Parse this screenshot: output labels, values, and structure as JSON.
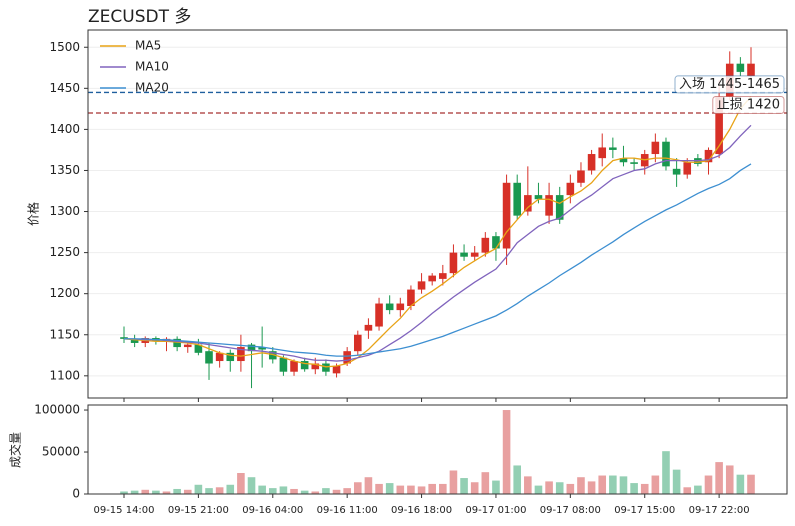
{
  "chart_data": [
    {
      "type": "candlestick",
      "title": "ZECUSDT 多",
      "ylabel": "价格",
      "categories": [
        "09-15 14:00",
        null,
        null,
        null,
        null,
        null,
        null,
        "09-15 21:00",
        null,
        null,
        null,
        null,
        null,
        null,
        "09-16 04:00",
        null,
        null,
        null,
        null,
        null,
        null,
        "09-16 11:00",
        null,
        null,
        null,
        null,
        null,
        null,
        "09-16 18:00",
        null,
        null,
        null,
        null,
        null,
        null,
        "09-17 01:00",
        null,
        null,
        null,
        null,
        null,
        null,
        "09-17 08:00",
        null,
        null,
        null,
        null,
        null,
        null,
        "09-17 15:00",
        null,
        null,
        null,
        null,
        null,
        null,
        "09-17 22:00",
        null,
        null,
        null
      ],
      "open": [
        1147,
        1145,
        1140,
        1146,
        1142,
        1145,
        1135,
        1138,
        1130,
        1118,
        1128,
        1118,
        1138,
        1135,
        1130,
        1122,
        1105,
        1118,
        1108,
        1115,
        1103,
        1115,
        1130,
        1155,
        1160,
        1188,
        1180,
        1185,
        1205,
        1215,
        1218,
        1225,
        1250,
        1245,
        1250,
        1270,
        1255,
        1335,
        1300,
        1320,
        1295,
        1320,
        1320,
        1335,
        1350,
        1365,
        1378,
        1365,
        1360,
        1355,
        1370,
        1385,
        1352,
        1345,
        1365,
        1360,
        1370,
        1440,
        1480,
        1465
      ],
      "high": [
        1160,
        1150,
        1148,
        1148,
        1147,
        1148,
        1142,
        1145,
        1140,
        1130,
        1132,
        1150,
        1140,
        1160,
        1135,
        1125,
        1120,
        1122,
        1122,
        1120,
        1115,
        1135,
        1155,
        1170,
        1195,
        1198,
        1195,
        1210,
        1225,
        1225,
        1235,
        1260,
        1260,
        1258,
        1275,
        1275,
        1345,
        1345,
        1355,
        1335,
        1335,
        1330,
        1345,
        1360,
        1375,
        1395,
        1390,
        1380,
        1365,
        1375,
        1395,
        1390,
        1365,
        1365,
        1370,
        1378,
        1460,
        1495,
        1488,
        1500
      ],
      "low": [
        1140,
        1135,
        1135,
        1138,
        1130,
        1130,
        1128,
        1125,
        1095,
        1110,
        1105,
        1105,
        1085,
        1110,
        1115,
        1100,
        1100,
        1105,
        1102,
        1100,
        1098,
        1112,
        1125,
        1145,
        1155,
        1175,
        1172,
        1180,
        1200,
        1210,
        1210,
        1220,
        1240,
        1240,
        1245,
        1240,
        1235,
        1290,
        1295,
        1310,
        1285,
        1285,
        1310,
        1330,
        1345,
        1355,
        1365,
        1355,
        1350,
        1345,
        1360,
        1350,
        1330,
        1340,
        1355,
        1345,
        1365,
        1435,
        1465,
        1460
      ],
      "close": [
        1145,
        1140,
        1146,
        1142,
        1145,
        1135,
        1138,
        1128,
        1115,
        1128,
        1118,
        1135,
        1130,
        1132,
        1120,
        1105,
        1118,
        1108,
        1115,
        1105,
        1112,
        1130,
        1150,
        1162,
        1188,
        1180,
        1188,
        1205,
        1215,
        1222,
        1225,
        1250,
        1245,
        1250,
        1268,
        1255,
        1335,
        1295,
        1320,
        1315,
        1320,
        1290,
        1335,
        1350,
        1370,
        1378,
        1375,
        1360,
        1358,
        1370,
        1385,
        1355,
        1345,
        1360,
        1358,
        1375,
        1440,
        1480,
        1470,
        1480
      ],
      "up_color": "#d73027",
      "down_color": "#1a9850",
      "series": [
        {
          "name": "MA5",
          "color": "#e8a317",
          "values": [
            1145,
            1144,
            1143,
            1142,
            1142,
            1141,
            1140,
            1138,
            1133,
            1128,
            1125,
            1124,
            1126,
            1128,
            1126,
            1122,
            1118,
            1115,
            1114,
            1111,
            1112,
            1115,
            1122,
            1132,
            1145,
            1158,
            1170,
            1185,
            1195,
            1203,
            1212,
            1222,
            1232,
            1240,
            1248,
            1255,
            1275,
            1290,
            1305,
            1315,
            1315,
            1310,
            1318,
            1325,
            1335,
            1350,
            1362,
            1365,
            1365,
            1363,
            1365,
            1365,
            1363,
            1360,
            1360,
            1362,
            1380,
            1400,
            1425,
            1440
          ]
        },
        {
          "name": "MA10",
          "color": "#8064bd",
          "values": [
            1145,
            1145,
            1144,
            1144,
            1143,
            1142,
            1141,
            1140,
            1138,
            1136,
            1134,
            1132,
            1131,
            1130,
            1128,
            1126,
            1124,
            1121,
            1119,
            1119,
            1118,
            1119,
            1122,
            1125,
            1130,
            1138,
            1146,
            1155,
            1165,
            1176,
            1186,
            1196,
            1205,
            1214,
            1222,
            1230,
            1245,
            1262,
            1272,
            1282,
            1288,
            1292,
            1302,
            1312,
            1320,
            1330,
            1340,
            1345,
            1350,
            1352,
            1358,
            1362,
            1362,
            1362,
            1362,
            1363,
            1368,
            1378,
            1392,
            1405
          ]
        },
        {
          "name": "MA20",
          "color": "#3d8fd1",
          "values": [
            1145,
            1145,
            1145,
            1144,
            1144,
            1143,
            1142,
            1141,
            1140,
            1139,
            1138,
            1137,
            1136,
            1135,
            1133,
            1131,
            1129,
            1128,
            1127,
            1125,
            1124,
            1124,
            1125,
            1127,
            1129,
            1131,
            1133,
            1136,
            1140,
            1144,
            1148,
            1153,
            1158,
            1163,
            1168,
            1173,
            1180,
            1188,
            1197,
            1205,
            1213,
            1222,
            1230,
            1238,
            1247,
            1255,
            1263,
            1272,
            1280,
            1288,
            1295,
            1302,
            1308,
            1315,
            1322,
            1328,
            1333,
            1340,
            1350,
            1358
          ]
        }
      ],
      "hlines": [
        {
          "value": 1445,
          "label": "入场 1445-1465",
          "color": "#1f5f9e"
        },
        {
          "value": 1420,
          "label": "止损 1420",
          "color": "#a83232"
        }
      ],
      "ylim": [
        1073,
        1521
      ],
      "yticks": [
        1100,
        1150,
        1200,
        1250,
        1300,
        1350,
        1400,
        1450,
        1500
      ],
      "grid": true,
      "legend": "upper left"
    },
    {
      "type": "bar",
      "ylabel": "成交量",
      "values": [
        3000,
        4000,
        5000,
        4000,
        3000,
        6000,
        5000,
        11000,
        7000,
        8000,
        11000,
        25000,
        20000,
        10000,
        7000,
        9000,
        6000,
        4000,
        3000,
        7000,
        5000,
        7000,
        14000,
        20000,
        12000,
        13000,
        10000,
        10000,
        9000,
        12000,
        12000,
        28000,
        19000,
        14000,
        26000,
        16000,
        100000,
        34000,
        21000,
        10000,
        15000,
        14000,
        12000,
        20000,
        15000,
        22000,
        22000,
        21000,
        13000,
        12000,
        22000,
        51000,
        29000,
        8000,
        10000,
        22000,
        38000,
        34000,
        23000,
        23000
      ],
      "up_color": "#e8a0a0",
      "down_color": "#93cfb3",
      "ylim": [
        0,
        106000
      ],
      "yticks": [
        0,
        50000,
        100000
      ]
    }
  ]
}
